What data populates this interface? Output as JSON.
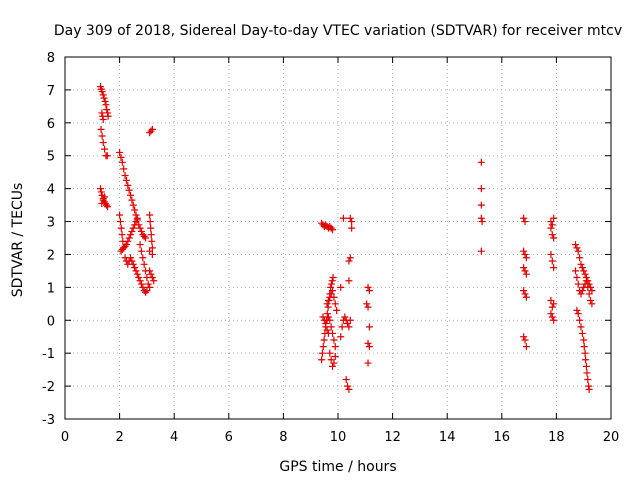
{
  "chart_data": {
    "type": "scatter",
    "title": "Day 309 of 2018, Sidereal Day-to-day VTEC variation (SDTVAR) for receiver mtcv",
    "xlabel": "GPS time / hours",
    "ylabel": "SDTVAR / TECUs",
    "xlim": [
      0,
      20
    ],
    "ylim": [
      -3,
      8
    ],
    "x_ticks": [
      0,
      2,
      4,
      6,
      8,
      10,
      12,
      14,
      16,
      18,
      20
    ],
    "y_ticks": [
      -3,
      -2,
      -1,
      0,
      1,
      2,
      3,
      4,
      5,
      6,
      7,
      8
    ],
    "x_tick_labels": [
      "0",
      "2",
      "4",
      "6",
      "8",
      "10",
      "12",
      "14",
      "16",
      "18",
      "20"
    ],
    "y_tick_labels": [
      "-3",
      "-2",
      "-1",
      "0",
      "1",
      "2",
      "3",
      "4",
      "5",
      "6",
      "7",
      "8"
    ],
    "grid": true,
    "marker": "+",
    "color": "#e00000",
    "series": [
      {
        "name": "SDTVAR",
        "points": [
          [
            1.3,
            7.1
          ],
          [
            1.33,
            7.02
          ],
          [
            1.36,
            6.95
          ],
          [
            1.4,
            6.85
          ],
          [
            1.43,
            6.75
          ],
          [
            1.47,
            6.65
          ],
          [
            1.5,
            6.55
          ],
          [
            1.53,
            6.4
          ],
          [
            1.56,
            6.3
          ],
          [
            1.58,
            6.2
          ],
          [
            1.35,
            6.3
          ],
          [
            1.38,
            6.2
          ],
          [
            1.4,
            6.1
          ],
          [
            1.32,
            5.8
          ],
          [
            1.36,
            5.6
          ],
          [
            1.4,
            5.4
          ],
          [
            1.45,
            5.2
          ],
          [
            1.5,
            5.0
          ],
          [
            1.55,
            5.0
          ],
          [
            1.3,
            4.0
          ],
          [
            1.33,
            3.9
          ],
          [
            1.36,
            3.8
          ],
          [
            1.4,
            3.7
          ],
          [
            1.44,
            3.6
          ],
          [
            1.48,
            3.55
          ],
          [
            1.52,
            3.5
          ],
          [
            1.56,
            3.45
          ],
          [
            1.35,
            3.55
          ],
          [
            1.4,
            3.65
          ],
          [
            1.45,
            3.75
          ],
          [
            2.0,
            5.1
          ],
          [
            2.05,
            4.95
          ],
          [
            2.1,
            4.8
          ],
          [
            2.15,
            4.6
          ],
          [
            2.2,
            4.4
          ],
          [
            2.25,
            4.25
          ],
          [
            2.3,
            4.1
          ],
          [
            2.35,
            3.95
          ],
          [
            2.4,
            3.8
          ],
          [
            2.45,
            3.65
          ],
          [
            2.5,
            3.5
          ],
          [
            2.55,
            3.35
          ],
          [
            2.6,
            3.2
          ],
          [
            2.65,
            3.05
          ],
          [
            2.7,
            2.9
          ],
          [
            2.75,
            2.8
          ],
          [
            2.8,
            2.7
          ],
          [
            2.85,
            2.6
          ],
          [
            2.9,
            2.55
          ],
          [
            2.95,
            2.5
          ],
          [
            2.0,
            3.2
          ],
          [
            2.03,
            3.0
          ],
          [
            2.06,
            2.8
          ],
          [
            2.09,
            2.6
          ],
          [
            2.12,
            2.4
          ],
          [
            2.15,
            2.2
          ],
          [
            2.05,
            2.1
          ],
          [
            2.1,
            2.15
          ],
          [
            2.15,
            2.2
          ],
          [
            2.2,
            2.25
          ],
          [
            2.25,
            2.3
          ],
          [
            2.3,
            2.4
          ],
          [
            2.35,
            2.5
          ],
          [
            2.4,
            2.6
          ],
          [
            2.45,
            2.7
          ],
          [
            2.5,
            2.8
          ],
          [
            2.55,
            2.9
          ],
          [
            2.6,
            3.0
          ],
          [
            2.65,
            3.1
          ],
          [
            2.2,
            1.9
          ],
          [
            2.25,
            1.8
          ],
          [
            2.3,
            1.7
          ],
          [
            2.35,
            1.8
          ],
          [
            2.4,
            1.9
          ],
          [
            2.45,
            1.8
          ],
          [
            2.5,
            1.7
          ],
          [
            2.55,
            1.6
          ],
          [
            2.6,
            1.5
          ],
          [
            2.65,
            1.4
          ],
          [
            2.7,
            1.3
          ],
          [
            2.75,
            1.2
          ],
          [
            2.8,
            1.1
          ],
          [
            2.85,
            1.0
          ],
          [
            2.9,
            0.9
          ],
          [
            2.95,
            0.85
          ],
          [
            3.0,
            0.9
          ],
          [
            2.75,
            2.3
          ],
          [
            2.8,
            2.1
          ],
          [
            2.85,
            1.9
          ],
          [
            2.9,
            1.7
          ],
          [
            2.95,
            1.5
          ],
          [
            3.0,
            1.3
          ],
          [
            3.05,
            1.1
          ],
          [
            3.1,
            1.0
          ],
          [
            3.1,
            3.2
          ],
          [
            3.12,
            3.0
          ],
          [
            3.14,
            2.8
          ],
          [
            3.16,
            2.6
          ],
          [
            3.18,
            2.4
          ],
          [
            3.2,
            2.2
          ],
          [
            3.1,
            2.1
          ],
          [
            3.2,
            2.0
          ],
          [
            3.1,
            1.5
          ],
          [
            3.15,
            1.4
          ],
          [
            3.2,
            1.3
          ],
          [
            3.25,
            1.2
          ],
          [
            3.1,
            5.7
          ],
          [
            3.15,
            5.75
          ],
          [
            3.2,
            5.8
          ],
          [
            9.4,
            -1.2
          ],
          [
            9.43,
            -1.0
          ],
          [
            9.46,
            -0.8
          ],
          [
            9.49,
            -0.6
          ],
          [
            9.52,
            -0.4
          ],
          [
            9.55,
            -0.2
          ],
          [
            9.58,
            0.0
          ],
          [
            9.61,
            0.2
          ],
          [
            9.64,
            0.4
          ],
          [
            9.67,
            0.6
          ],
          [
            9.7,
            0.8
          ],
          [
            9.73,
            1.0
          ],
          [
            9.76,
            1.1
          ],
          [
            9.79,
            1.2
          ],
          [
            9.82,
            1.3
          ],
          [
            9.45,
            0.1
          ],
          [
            9.5,
            0.0
          ],
          [
            9.55,
            -0.1
          ],
          [
            9.6,
            0.0
          ],
          [
            9.65,
            0.1
          ],
          [
            9.7,
            0.0
          ],
          [
            9.75,
            -0.2
          ],
          [
            9.8,
            -0.4
          ],
          [
            9.85,
            -0.6
          ],
          [
            9.9,
            -0.8
          ],
          [
            9.7,
            -1.0
          ],
          [
            9.75,
            -1.2
          ],
          [
            9.8,
            -1.4
          ],
          [
            9.85,
            -1.3
          ],
          [
            9.9,
            -1.1
          ],
          [
            9.6,
            0.5
          ],
          [
            9.65,
            0.6
          ],
          [
            9.7,
            0.7
          ],
          [
            9.75,
            0.8
          ],
          [
            9.8,
            0.9
          ],
          [
            9.85,
            0.7
          ],
          [
            9.9,
            0.5
          ],
          [
            9.95,
            0.3
          ],
          [
            9.6,
            -0.3
          ],
          [
            9.65,
            -0.4
          ],
          [
            9.4,
            2.95
          ],
          [
            9.45,
            2.9
          ],
          [
            9.5,
            2.85
          ],
          [
            9.55,
            2.9
          ],
          [
            9.6,
            2.85
          ],
          [
            9.65,
            2.8
          ],
          [
            9.7,
            2.85
          ],
          [
            9.75,
            2.8
          ],
          [
            9.8,
            2.75
          ],
          [
            10.1,
            -0.5
          ],
          [
            10.15,
            -0.2
          ],
          [
            10.2,
            0.0
          ],
          [
            10.25,
            0.1
          ],
          [
            10.3,
            0.0
          ],
          [
            10.35,
            -0.1
          ],
          [
            10.4,
            -0.2
          ],
          [
            10.45,
            0.0
          ],
          [
            10.1,
            1.0
          ],
          [
            10.2,
            3.1
          ],
          [
            10.3,
            -1.8
          ],
          [
            10.35,
            -2.0
          ],
          [
            10.4,
            -2.1
          ],
          [
            10.4,
            1.8
          ],
          [
            10.45,
            1.9
          ],
          [
            10.4,
            1.2
          ],
          [
            10.45,
            3.1
          ],
          [
            10.5,
            3.0
          ],
          [
            10.5,
            2.8
          ],
          [
            11.1,
            1.0
          ],
          [
            11.15,
            0.9
          ],
          [
            11.05,
            0.5
          ],
          [
            11.1,
            0.4
          ],
          [
            11.15,
            -0.2
          ],
          [
            11.1,
            -0.7
          ],
          [
            11.15,
            -0.8
          ],
          [
            11.1,
            -1.3
          ],
          [
            15.25,
            4.8
          ],
          [
            15.25,
            4.0
          ],
          [
            15.25,
            3.5
          ],
          [
            15.25,
            3.1
          ],
          [
            15.28,
            3.0
          ],
          [
            15.25,
            2.1
          ],
          [
            16.8,
            3.1
          ],
          [
            16.85,
            3.0
          ],
          [
            16.8,
            2.1
          ],
          [
            16.85,
            2.0
          ],
          [
            16.9,
            1.9
          ],
          [
            16.8,
            1.6
          ],
          [
            16.85,
            1.5
          ],
          [
            16.9,
            1.4
          ],
          [
            16.8,
            0.9
          ],
          [
            16.85,
            0.8
          ],
          [
            16.9,
            0.7
          ],
          [
            16.8,
            -0.5
          ],
          [
            16.85,
            -0.6
          ],
          [
            16.9,
            -0.8
          ],
          [
            17.8,
            3.0
          ],
          [
            17.85,
            2.9
          ],
          [
            17.9,
            3.1
          ],
          [
            17.8,
            2.8
          ],
          [
            17.85,
            2.6
          ],
          [
            17.9,
            2.5
          ],
          [
            17.8,
            2.0
          ],
          [
            17.85,
            1.8
          ],
          [
            17.9,
            1.6
          ],
          [
            17.8,
            0.6
          ],
          [
            17.85,
            0.4
          ],
          [
            17.9,
            0.5
          ],
          [
            17.8,
            0.2
          ],
          [
            17.85,
            0.1
          ],
          [
            17.9,
            0.0
          ],
          [
            18.7,
            2.3
          ],
          [
            18.75,
            2.2
          ],
          [
            18.8,
            2.1
          ],
          [
            18.85,
            1.9
          ],
          [
            18.9,
            1.7
          ],
          [
            18.95,
            1.6
          ],
          [
            19.0,
            1.5
          ],
          [
            19.05,
            1.4
          ],
          [
            19.1,
            1.3
          ],
          [
            19.15,
            1.2
          ],
          [
            19.2,
            1.1
          ],
          [
            19.25,
            1.0
          ],
          [
            19.3,
            0.9
          ],
          [
            18.7,
            1.5
          ],
          [
            18.75,
            1.3
          ],
          [
            18.8,
            1.1
          ],
          [
            18.85,
            0.9
          ],
          [
            18.9,
            0.8
          ],
          [
            18.95,
            0.9
          ],
          [
            19.0,
            1.0
          ],
          [
            19.05,
            1.1
          ],
          [
            19.1,
            1.2
          ],
          [
            19.15,
            1.0
          ],
          [
            19.2,
            0.8
          ],
          [
            19.25,
            0.6
          ],
          [
            19.3,
            0.5
          ],
          [
            18.75,
            0.3
          ],
          [
            18.8,
            0.2
          ],
          [
            18.85,
            0.0
          ],
          [
            18.9,
            -0.2
          ],
          [
            18.95,
            -0.4
          ],
          [
            19.0,
            -0.6
          ],
          [
            19.02,
            -0.8
          ],
          [
            19.05,
            -1.0
          ],
          [
            19.07,
            -1.2
          ],
          [
            19.1,
            -1.4
          ],
          [
            19.12,
            -1.6
          ],
          [
            19.15,
            -1.8
          ],
          [
            19.18,
            -2.0
          ],
          [
            19.2,
            -2.1
          ]
        ]
      }
    ]
  }
}
